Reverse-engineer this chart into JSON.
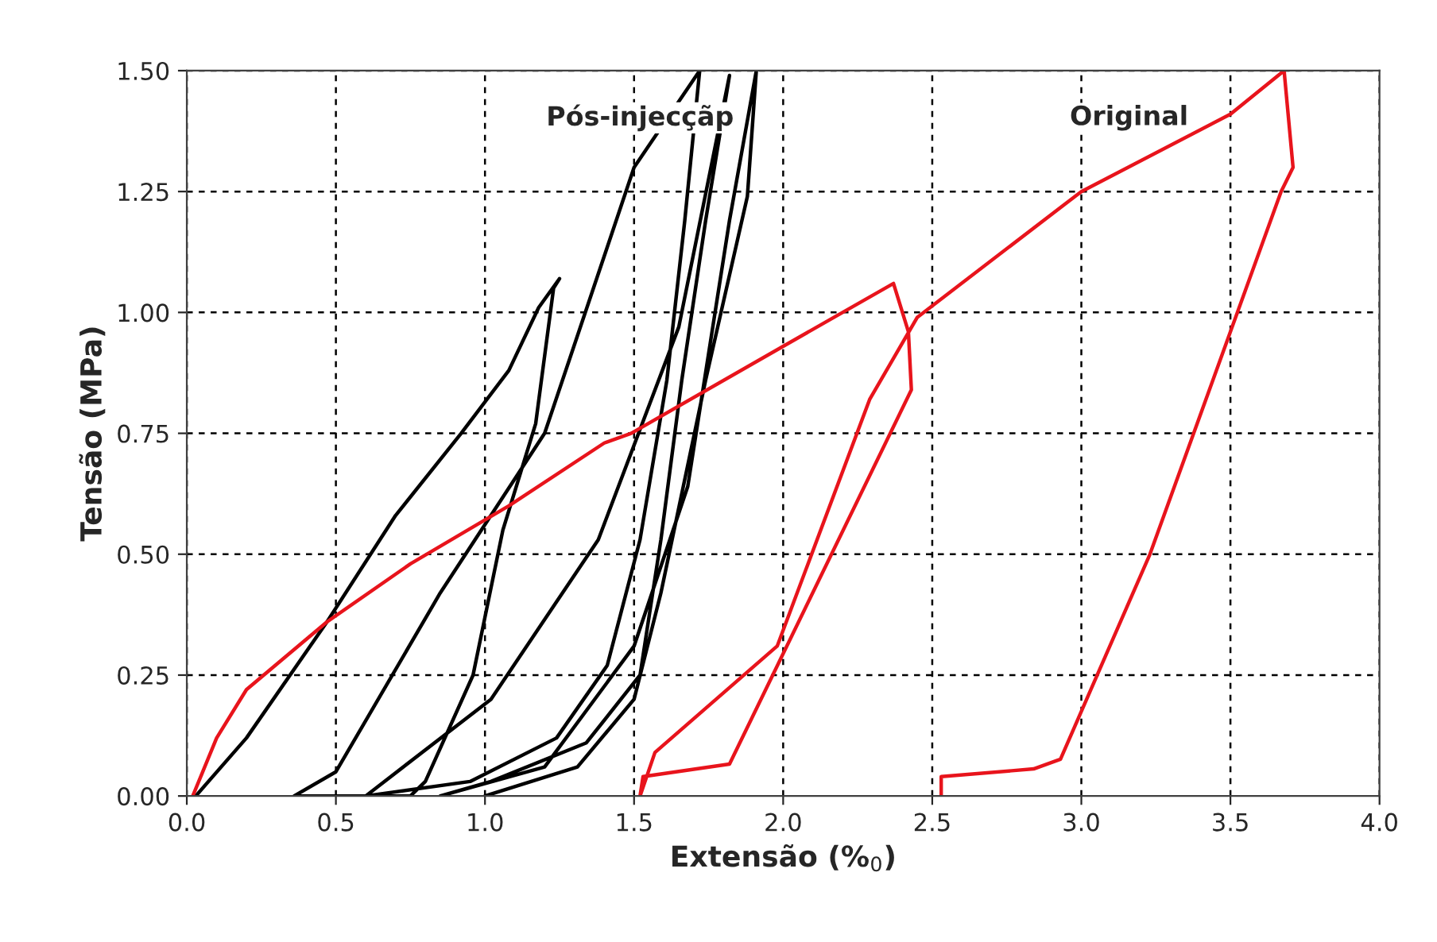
{
  "chart_data": {
    "type": "line",
    "xlabel": "Extensão (%$_{0}$)",
    "ylabel": "Tensão (MPa)",
    "xlim": [
      0,
      4
    ],
    "ylim": [
      0,
      1.5
    ],
    "xticks": [
      {
        "value": 0,
        "label": "0.0"
      },
      {
        "value": 0.5,
        "label": "0.5"
      },
      {
        "value": 1,
        "label": "1.0"
      },
      {
        "value": 1.5,
        "label": "1.5"
      },
      {
        "value": 2,
        "label": "2.0"
      },
      {
        "value": 2.5,
        "label": "2.5"
      },
      {
        "value": 3,
        "label": "3.0"
      },
      {
        "value": 3.5,
        "label": "3.5"
      },
      {
        "value": 4,
        "label": "4.0"
      }
    ],
    "yticks": [
      {
        "value": 0,
        "label": "0.00"
      },
      {
        "value": 0.25,
        "label": "0.25"
      },
      {
        "value": 0.5,
        "label": "0.50"
      },
      {
        "value": 0.75,
        "label": "0.75"
      },
      {
        "value": 1,
        "label": "1.00"
      },
      {
        "value": 1.25,
        "label": "1.25"
      },
      {
        "value": 1.5,
        "label": "1.50"
      }
    ],
    "grid": true,
    "marker": "none",
    "line_style": "solid",
    "series": [
      {
        "color": "#000000",
        "x": [
          0.03,
          0.2,
          0.47,
          0.7,
          0.92,
          1.08,
          1.18,
          1.25,
          1.23,
          1.17,
          1.06,
          0.96,
          0.8,
          0.75,
          0.36,
          0.5,
          0.85,
          1.2,
          1.5,
          1.72,
          1.67,
          1.61,
          1.52,
          1.41,
          1.24,
          0.95,
          0.6,
          1.02,
          1.38,
          1.65,
          1.82,
          1.74,
          1.66,
          1.59,
          1.52,
          1.34,
          1.02,
          0.85,
          1.2,
          1.5,
          1.68,
          1.82,
          1.91,
          1.88,
          1.74,
          1.59,
          1.5,
          1.31,
          1.0
        ],
        "values": [
          0,
          0.12,
          0.36,
          0.58,
          0.75,
          0.88,
          1.01,
          1.07,
          1.05,
          0.77,
          0.55,
          0.25,
          0.03,
          0,
          0,
          0.05,
          0.42,
          0.75,
          1.3,
          1.5,
          1.19,
          0.86,
          0.53,
          0.27,
          0.12,
          0.03,
          0,
          0.2,
          0.53,
          0.97,
          1.49,
          1.19,
          0.86,
          0.53,
          0.25,
          0.11,
          0.03,
          0,
          0.06,
          0.31,
          0.64,
          1.19,
          1.5,
          1.24,
          0.86,
          0.42,
          0.2,
          0.06,
          0
        ]
      },
      {
        "color": "#e8141c",
        "x": [
          0.02,
          0.06,
          0.1,
          0.2,
          0.47,
          0.75,
          1.08,
          1.4,
          1.49,
          2.0,
          2.37,
          2.42,
          2.43,
          1.82,
          1.53,
          1.52,
          1.57,
          1.98,
          2.29,
          2.45,
          3.0,
          3.5,
          3.68,
          3.71,
          3.67,
          3.23,
          2.93,
          2.84,
          2.53,
          2.53
        ],
        "values": [
          0,
          0.06,
          0.12,
          0.22,
          0.36,
          0.48,
          0.6,
          0.73,
          0.75,
          0.93,
          1.06,
          0.96,
          0.84,
          0.066,
          0.04,
          0,
          0.09,
          0.31,
          0.82,
          0.99,
          1.25,
          1.41,
          1.5,
          1.3,
          1.25,
          0.5,
          0.076,
          0.056,
          0.04,
          0
        ]
      }
    ],
    "annotations": [
      "Pós-injecçãp",
      "Original"
    ]
  }
}
